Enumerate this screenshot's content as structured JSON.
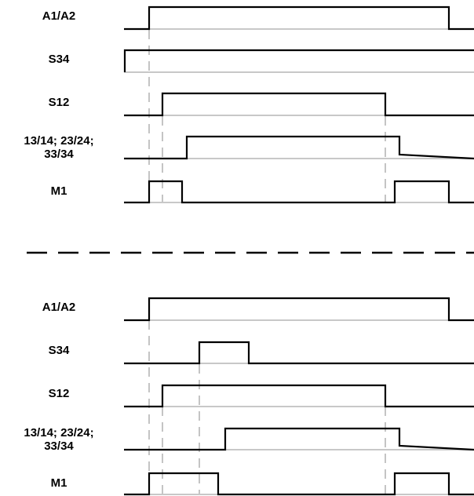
{
  "colors": {
    "signal": "#000000",
    "baseline": "#c8c8c8",
    "guide": "#c4c4c4"
  },
  "diagrams": [
    {
      "signals": [
        {
          "label": "A1/A2"
        },
        {
          "label": "S34"
        },
        {
          "label": "S12"
        },
        {
          "label_lines": [
            "13/14; 23/24;",
            "33/34"
          ]
        },
        {
          "label": "M1"
        }
      ]
    },
    {
      "signals": [
        {
          "label": "A1/A2"
        },
        {
          "label": "S34"
        },
        {
          "label": "S12"
        },
        {
          "label_lines": [
            "13/14; 23/24;",
            "33/34"
          ]
        },
        {
          "label": "M1"
        }
      ]
    }
  ]
}
